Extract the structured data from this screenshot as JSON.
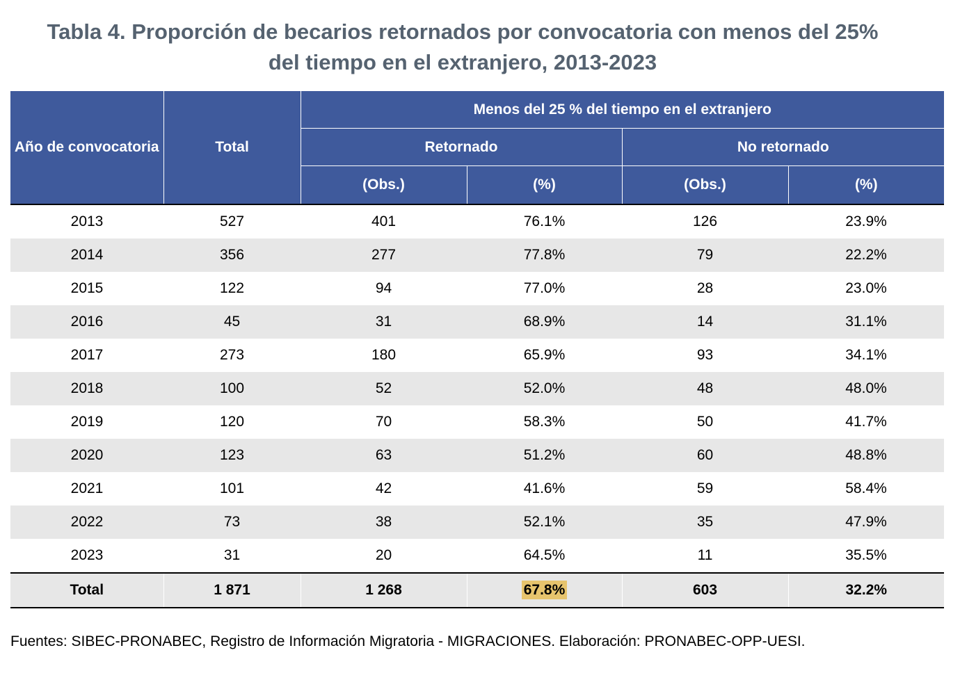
{
  "title": {
    "line1": "Tabla 4. Proporción de becarios retornados por convocatoria con menos del 25%",
    "line2": "del tiempo en el extranjero, 2013-2023"
  },
  "headers": {
    "year": "Año de convocatoria",
    "total": "Total",
    "group": "Menos del 25 % del tiempo en el extranjero",
    "retornado": "Retornado",
    "no_retornado": "No retornado",
    "obs": "(Obs.)",
    "pct": "(%)"
  },
  "rows": [
    {
      "year": "2013",
      "total": "527",
      "ret_obs": "401",
      "ret_pct": "76.1%",
      "nr_obs": "126",
      "nr_pct": "23.9%"
    },
    {
      "year": "2014",
      "total": "356",
      "ret_obs": "277",
      "ret_pct": "77.8%",
      "nr_obs": "79",
      "nr_pct": "22.2%"
    },
    {
      "year": "2015",
      "total": "122",
      "ret_obs": "94",
      "ret_pct": "77.0%",
      "nr_obs": "28",
      "nr_pct": "23.0%"
    },
    {
      "year": "2016",
      "total": "45",
      "ret_obs": "31",
      "ret_pct": "68.9%",
      "nr_obs": "14",
      "nr_pct": "31.1%"
    },
    {
      "year": "2017",
      "total": "273",
      "ret_obs": "180",
      "ret_pct": "65.9%",
      "nr_obs": "93",
      "nr_pct": "34.1%"
    },
    {
      "year": "2018",
      "total": "100",
      "ret_obs": "52",
      "ret_pct": "52.0%",
      "nr_obs": "48",
      "nr_pct": "48.0%"
    },
    {
      "year": "2019",
      "total": "120",
      "ret_obs": "70",
      "ret_pct": "58.3%",
      "nr_obs": "50",
      "nr_pct": "41.7%"
    },
    {
      "year": "2020",
      "total": "123",
      "ret_obs": "63",
      "ret_pct": "51.2%",
      "nr_obs": "60",
      "nr_pct": "48.8%"
    },
    {
      "year": "2021",
      "total": "101",
      "ret_obs": "42",
      "ret_pct": "41.6%",
      "nr_obs": "59",
      "nr_pct": "58.4%"
    },
    {
      "year": "2022",
      "total": "73",
      "ret_obs": "38",
      "ret_pct": "52.1%",
      "nr_obs": "35",
      "nr_pct": "47.9%"
    },
    {
      "year": "2023",
      "total": "31",
      "ret_obs": "20",
      "ret_pct": "64.5%",
      "nr_obs": "11",
      "nr_pct": "35.5%"
    }
  ],
  "total_row": {
    "label": "Total",
    "total": "1 871",
    "ret_obs": "1 268",
    "ret_pct": "67.8%",
    "nr_obs": "603",
    "nr_pct": "32.2%"
  },
  "colors": {
    "header_bg": "#3f5a9c",
    "stripe": "#e7e7e7",
    "highlight": "#e7c46d",
    "title": "#556270"
  },
  "footnote": "Fuentes: SIBEC-PRONABEC, Registro de Información Migratoria - MIGRACIONES. Elaboración: PRONABEC-OPP-UESI."
}
